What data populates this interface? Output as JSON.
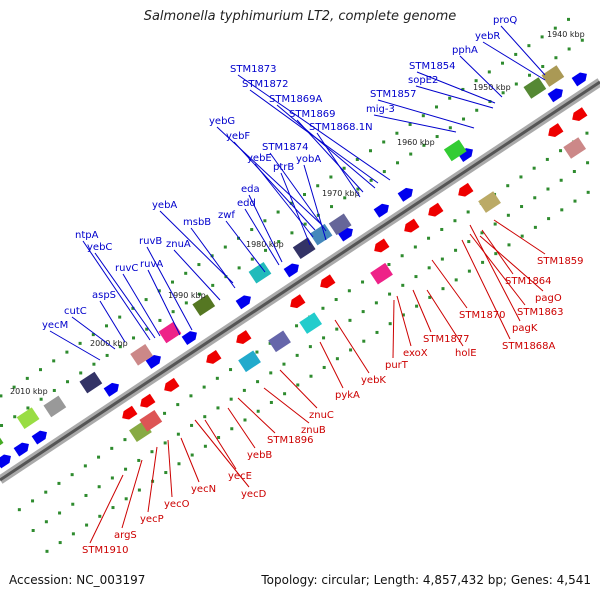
{
  "title": "Salmonella typhimurium LT2, complete genome",
  "footer": {
    "accession": "Accession: NC_003197",
    "topology": "Topology: circular; Length: 4,857,432 bp; Genes: 4,541"
  },
  "colors": {
    "forward_label": "#0000cc",
    "reverse_label": "#cc0000",
    "forward_gene": "#0000ee",
    "reverse_gene": "#ee0000"
  },
  "kbp_labels": [
    "2010 kbp",
    "2000 kbp",
    "1990 kbp",
    "1980 kbp",
    "1970 kbp",
    "1960 kbp",
    "1950 kbp",
    "1940 kbp"
  ],
  "forward_genes": [
    "proQ",
    "yebR",
    "pphA",
    "STM1854",
    "sopE2",
    "STM1857",
    "mig-3",
    "STM1873",
    "STM1872",
    "STM1869A",
    "STM1869",
    "STM1868.1N",
    "yebG",
    "yebF",
    "STM1874",
    "yebE",
    "yobA",
    "ptrB",
    "eda",
    "edd",
    "zwf",
    "yebA",
    "msbB",
    "ntpA",
    "yebC",
    "ruvB",
    "znuA",
    "ruvC",
    "ruvA",
    "aspS",
    "cutC",
    "yecM"
  ],
  "reverse_genes": [
    "STM1859",
    "STM1864",
    "pagO",
    "STM1863",
    "STM1870",
    "pagK",
    "STM1868A",
    "STM1877",
    "holE",
    "exoX",
    "purT",
    "yebK",
    "pykA",
    "znuC",
    "znuB",
    "STM1896",
    "yebB",
    "yecE",
    "yecD",
    "yecN",
    "yecO",
    "yecP",
    "argS",
    "STM1910"
  ]
}
